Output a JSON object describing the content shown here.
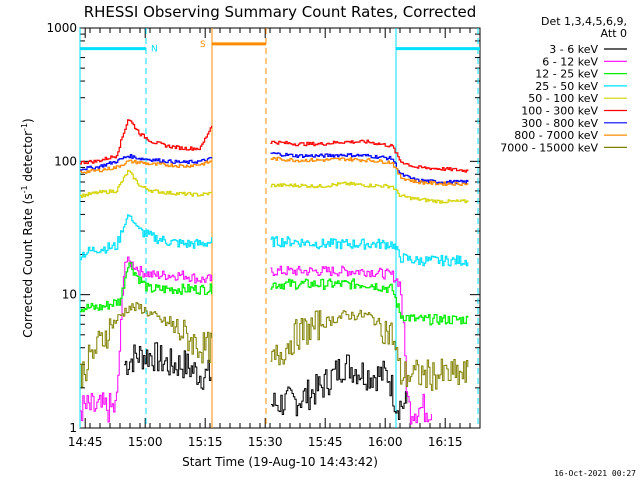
{
  "chart_data": {
    "type": "line",
    "title": "RHESSI Observing Summary Count Rates, Corrected",
    "xlabel": "Start Time (19-Aug-10 14:43:42)",
    "ylabel_pre": "Corrected Count Rate (s",
    "ylabel_sup1": "-1",
    "ylabel_mid": " detector",
    "ylabel_sup2": "-1",
    "ylabel_post": ")",
    "x_unit": "minutes after 14:43:42",
    "xlim": [
      0,
      100
    ],
    "ylim": [
      1,
      1000
    ],
    "y_scale": "log",
    "x_ticks": [
      {
        "value": 1.3,
        "label": "14:45"
      },
      {
        "value": 16.3,
        "label": "15:00"
      },
      {
        "value": 31.3,
        "label": "15:15"
      },
      {
        "value": 46.3,
        "label": "15:30"
      },
      {
        "value": 61.3,
        "label": "15:45"
      },
      {
        "value": 76.3,
        "label": "16:00"
      },
      {
        "value": 91.3,
        "label": "16:15"
      }
    ],
    "y_ticks": [
      {
        "value": 1,
        "label": "1"
      },
      {
        "value": 10,
        "label": "10"
      },
      {
        "value": 100,
        "label": "100"
      },
      {
        "value": 1000,
        "label": "1000"
      }
    ],
    "legend": {
      "header1": "Det 1,3,4,5,6,9,",
      "header2": "Att 0",
      "position": "top-right"
    },
    "gap": [
      33,
      47.5
    ],
    "night_bars": [
      {
        "label": "N",
        "color": "#00e0ff",
        "level": 700,
        "x": [
          0,
          16.5
        ],
        "dash_x": 16.5
      },
      {
        "label": "",
        "color": "#00e0ff",
        "level": 700,
        "x": [
          79,
          100
        ],
        "dash_x": 99.5
      },
      {
        "label": "S",
        "color": "#ff8c00",
        "level": 760,
        "x": [
          33,
          46.5
        ],
        "dash_x": 46.5
      }
    ],
    "vlines": [
      {
        "x": 0,
        "color": "#00e0ff",
        "dashed": false
      },
      {
        "x": 79,
        "color": "#00e0ff",
        "dashed": false
      },
      {
        "x": 33,
        "color": "#ff8c00",
        "dashed": false
      }
    ],
    "series": [
      {
        "name": "3 - 6 keV",
        "color": "#000000",
        "points": [
          [
            11,
            3
          ],
          [
            14,
            3.5
          ],
          [
            18,
            3.5
          ],
          [
            22,
            3
          ],
          [
            26,
            3
          ],
          [
            30,
            2.5
          ],
          [
            33,
            2.5
          ],
          [
            47.5,
            1.5
          ],
          [
            54,
            1.6
          ],
          [
            60,
            2
          ],
          [
            66,
            3
          ],
          [
            72,
            2.5
          ],
          [
            77,
            2.5
          ],
          [
            79,
            1.5
          ],
          [
            82,
            1.5
          ]
        ]
      },
      {
        "name": "6 - 12 keV",
        "color": "#ff00ff",
        "points": [
          [
            0,
            1.4
          ],
          [
            4,
            1.4
          ],
          [
            9,
            1.4
          ],
          [
            11,
            18
          ],
          [
            13,
            17
          ],
          [
            15,
            15
          ],
          [
            18,
            14
          ],
          [
            22,
            14
          ],
          [
            26,
            14
          ],
          [
            30,
            13
          ],
          [
            33,
            13
          ],
          [
            47.5,
            15
          ],
          [
            54,
            15
          ],
          [
            60,
            15
          ],
          [
            66,
            15
          ],
          [
            72,
            15
          ],
          [
            78,
            14
          ],
          [
            80,
            12
          ],
          [
            82,
            1.4
          ],
          [
            85,
            1.4
          ],
          [
            88,
            1.4
          ]
        ]
      },
      {
        "name": "12 - 25 keV",
        "color": "#00ee00",
        "points": [
          [
            0,
            8
          ],
          [
            5,
            8
          ],
          [
            10,
            9
          ],
          [
            12,
            18
          ],
          [
            14,
            14
          ],
          [
            17,
            11
          ],
          [
            22,
            11
          ],
          [
            26,
            11
          ],
          [
            30,
            11
          ],
          [
            33,
            11
          ],
          [
            47.5,
            12
          ],
          [
            54,
            12
          ],
          [
            60,
            12
          ],
          [
            66,
            12
          ],
          [
            72,
            12
          ],
          [
            78,
            11
          ],
          [
            80,
            7
          ],
          [
            84,
            6.5
          ],
          [
            90,
            6.5
          ],
          [
            97,
            6.5
          ]
        ]
      },
      {
        "name": "25 - 50 keV",
        "color": "#00e0ff",
        "points": [
          [
            0,
            20
          ],
          [
            4,
            22
          ],
          [
            9,
            23
          ],
          [
            12,
            40
          ],
          [
            15,
            30
          ],
          [
            18,
            27
          ],
          [
            22,
            25
          ],
          [
            26,
            24
          ],
          [
            30,
            24
          ],
          [
            33,
            25
          ],
          [
            47.5,
            25
          ],
          [
            54,
            25
          ],
          [
            60,
            24
          ],
          [
            66,
            24
          ],
          [
            72,
            24
          ],
          [
            78,
            24
          ],
          [
            80,
            19
          ],
          [
            84,
            18
          ],
          [
            90,
            18
          ],
          [
            97,
            18
          ]
        ]
      },
      {
        "name": "50 - 100 keV",
        "color": "#d4d400",
        "points": [
          [
            0,
            55
          ],
          [
            4,
            58
          ],
          [
            9,
            60
          ],
          [
            12,
            85
          ],
          [
            15,
            65
          ],
          [
            18,
            60
          ],
          [
            22,
            58
          ],
          [
            26,
            57
          ],
          [
            30,
            56
          ],
          [
            33,
            58
          ],
          [
            47.5,
            66
          ],
          [
            54,
            66
          ],
          [
            60,
            65
          ],
          [
            66,
            68
          ],
          [
            72,
            66
          ],
          [
            78,
            65
          ],
          [
            80,
            55
          ],
          [
            84,
            52
          ],
          [
            90,
            50
          ],
          [
            97,
            50
          ]
        ]
      },
      {
        "name": "100 - 300 keV",
        "color": "#ff0000",
        "points": [
          [
            0,
            98
          ],
          [
            4,
            100
          ],
          [
            9,
            110
          ],
          [
            12,
            210
          ],
          [
            15,
            160
          ],
          [
            18,
            140
          ],
          [
            22,
            130
          ],
          [
            26,
            125
          ],
          [
            30,
            125
          ],
          [
            33,
            190
          ],
          [
            47.5,
            140
          ],
          [
            54,
            135
          ],
          [
            60,
            135
          ],
          [
            66,
            140
          ],
          [
            72,
            140
          ],
          [
            78,
            130
          ],
          [
            80,
            100
          ],
          [
            84,
            90
          ],
          [
            90,
            88
          ],
          [
            97,
            85
          ]
        ]
      },
      {
        "name": "300 - 800 keV",
        "color": "#0000ff",
        "points": [
          [
            0,
            88
          ],
          [
            4,
            90
          ],
          [
            9,
            100
          ],
          [
            12,
            110
          ],
          [
            15,
            105
          ],
          [
            18,
            103
          ],
          [
            22,
            100
          ],
          [
            26,
            98
          ],
          [
            30,
            100
          ],
          [
            33,
            105
          ],
          [
            47.5,
            115
          ],
          [
            54,
            110
          ],
          [
            60,
            110
          ],
          [
            66,
            112
          ],
          [
            72,
            110
          ],
          [
            78,
            105
          ],
          [
            80,
            80
          ],
          [
            84,
            72
          ],
          [
            90,
            70
          ],
          [
            97,
            70
          ]
        ]
      },
      {
        "name": "800 - 7000 keV",
        "color": "#ff8c00",
        "points": [
          [
            0,
            83
          ],
          [
            4,
            85
          ],
          [
            9,
            90
          ],
          [
            12,
            100
          ],
          [
            15,
            98
          ],
          [
            18,
            95
          ],
          [
            22,
            94
          ],
          [
            26,
            92
          ],
          [
            30,
            95
          ],
          [
            33,
            100
          ],
          [
            47.5,
            105
          ],
          [
            54,
            102
          ],
          [
            60,
            102
          ],
          [
            66,
            104
          ],
          [
            72,
            102
          ],
          [
            78,
            98
          ],
          [
            80,
            76
          ],
          [
            84,
            70
          ],
          [
            90,
            68
          ],
          [
            97,
            68
          ]
        ]
      },
      {
        "name": "7000 - 15000 keV",
        "color": "#808000",
        "points": [
          [
            0,
            2.5
          ],
          [
            4,
            4
          ],
          [
            8,
            6
          ],
          [
            12,
            8
          ],
          [
            15,
            8
          ],
          [
            18,
            7
          ],
          [
            22,
            6
          ],
          [
            26,
            5
          ],
          [
            30,
            4
          ],
          [
            33,
            4
          ],
          [
            47.5,
            3
          ],
          [
            54,
            5
          ],
          [
            60,
            6
          ],
          [
            66,
            7
          ],
          [
            72,
            7
          ],
          [
            78,
            5
          ],
          [
            80,
            2.5
          ],
          [
            84,
            2.5
          ],
          [
            90,
            2.5
          ],
          [
            97,
            2.5
          ]
        ]
      }
    ],
    "grid": false
  },
  "footer": {
    "timestamp": "16-Oct-2021 00:27"
  }
}
